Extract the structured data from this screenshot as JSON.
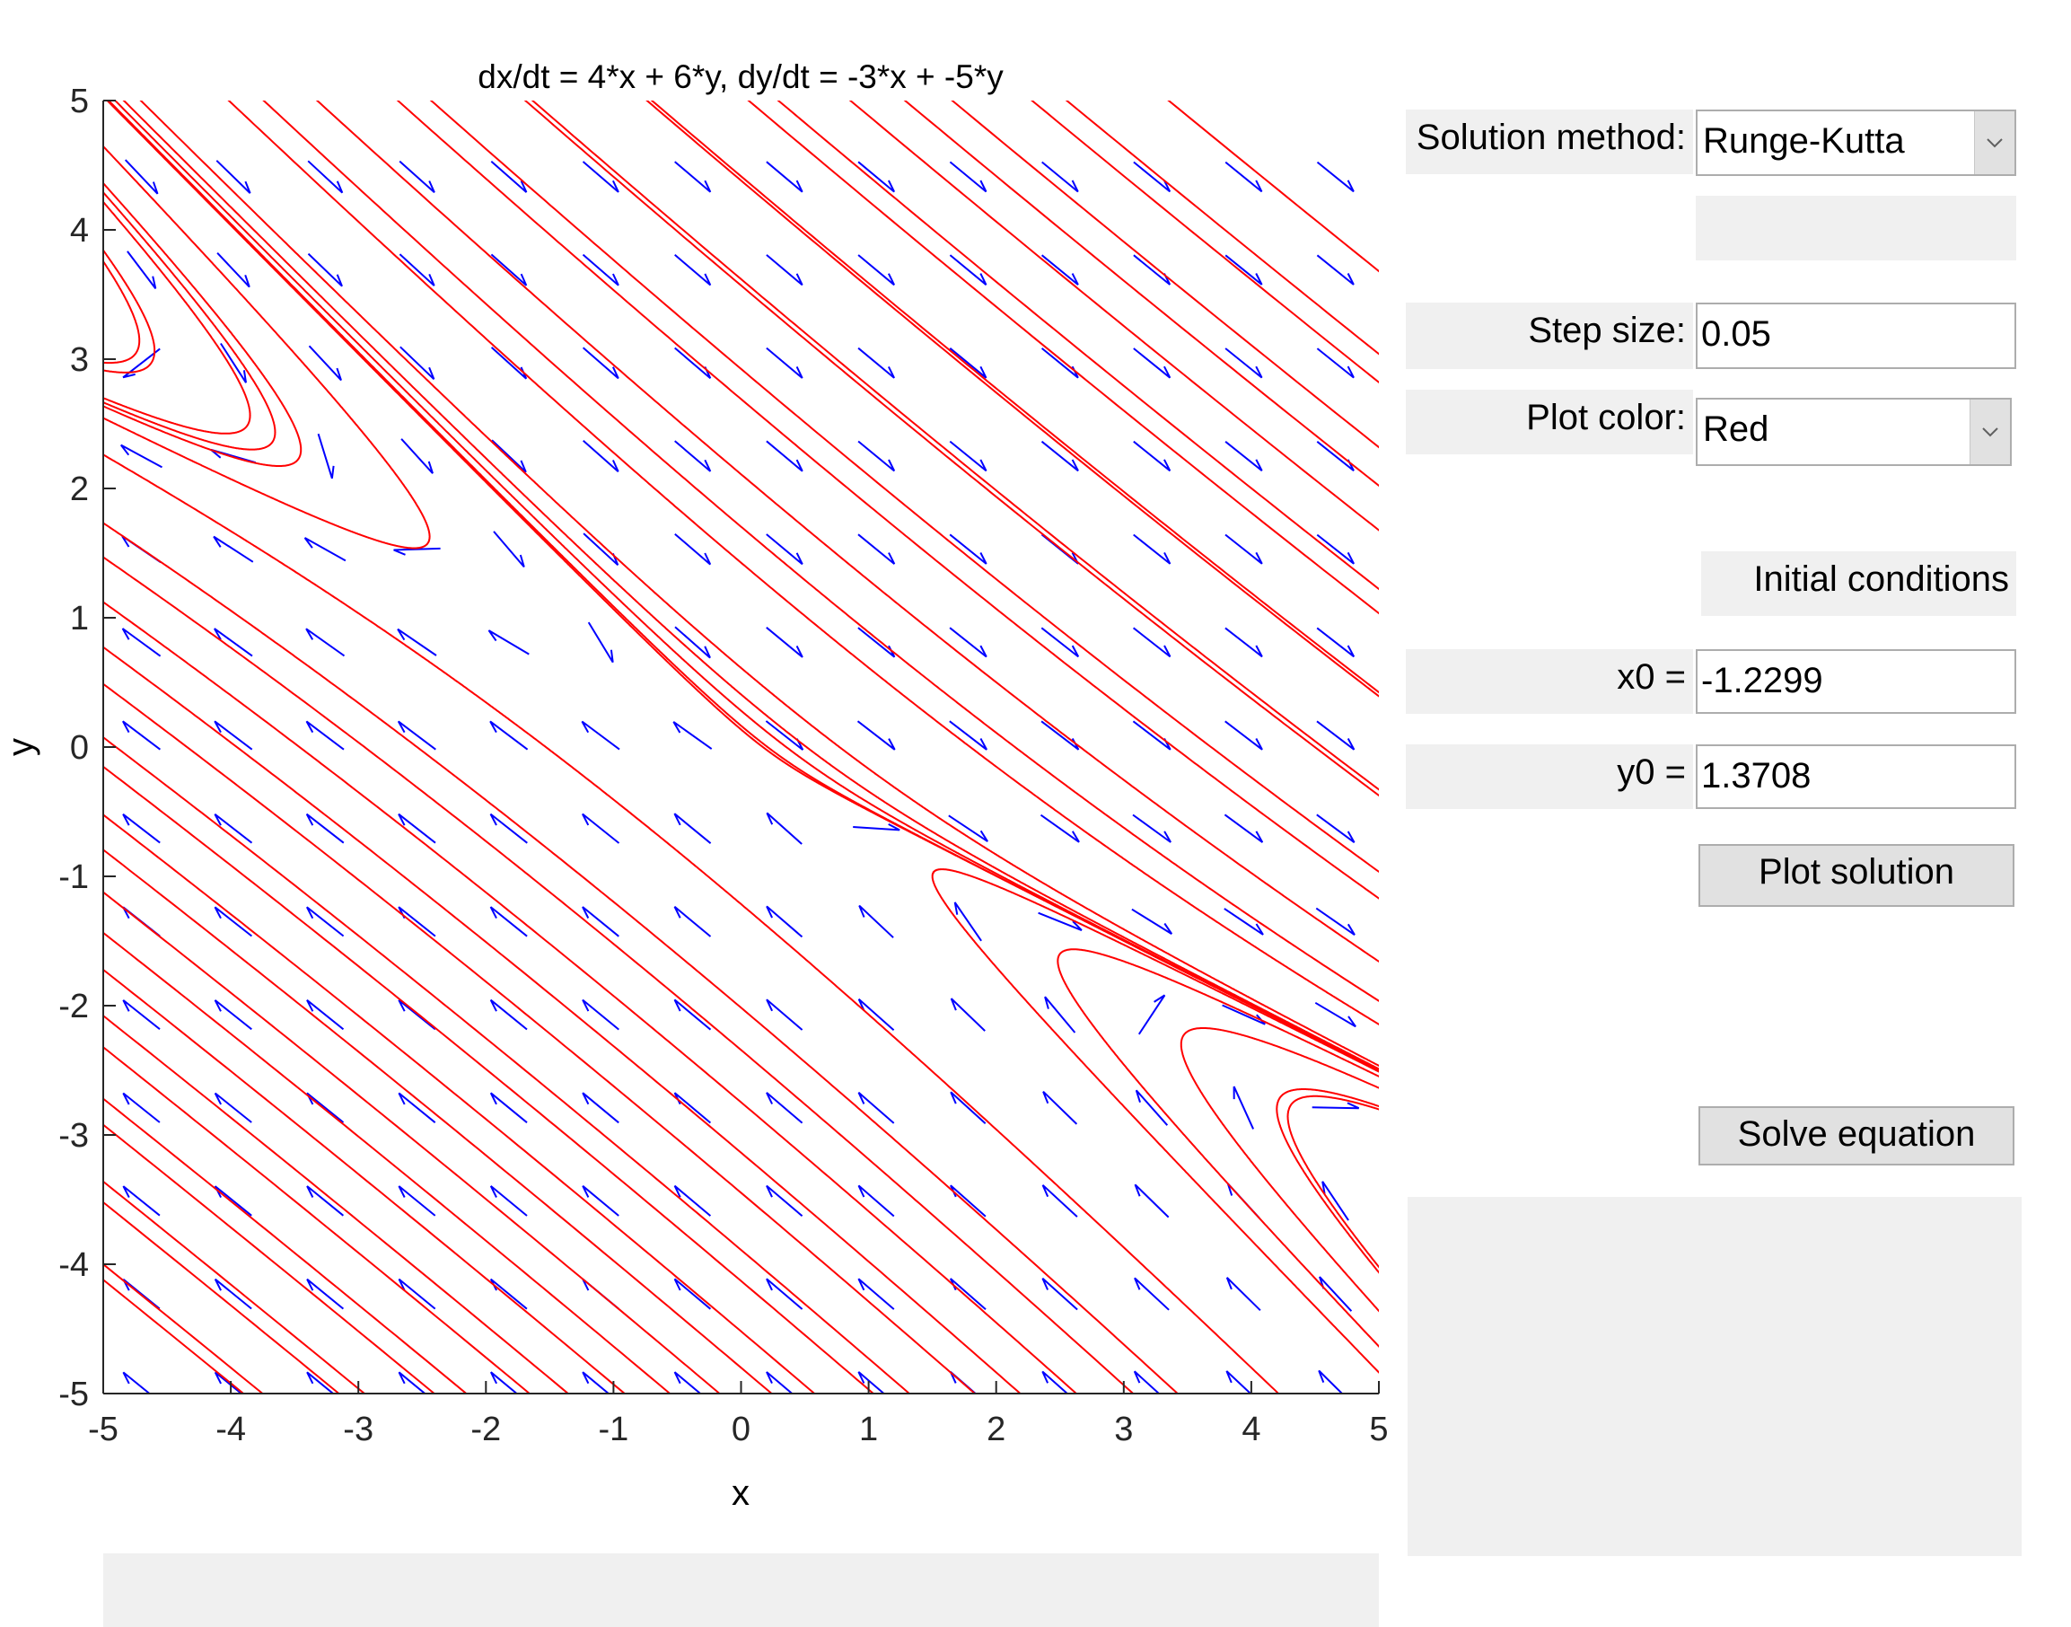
{
  "chart_data": {
    "type": "scatter",
    "subtype": "phase-portrait (direction field with solution curves)",
    "title": "dx/dt = 4*x + 6*y, dy/dt = -3*x + -5*y",
    "xlabel": "x",
    "ylabel": "y",
    "xlim": [
      -5,
      5
    ],
    "ylim": [
      -5,
      5
    ],
    "xticks": [
      -5,
      -4,
      -3,
      -2,
      -1,
      0,
      1,
      2,
      3,
      4,
      5
    ],
    "yticks": [
      -5,
      -4,
      -3,
      -2,
      -1,
      0,
      1,
      2,
      3,
      4,
      5
    ],
    "grid": false,
    "system": {
      "a": 4,
      "b": 6,
      "c": -3,
      "d": -5
    },
    "direction_field_color": "#0000ff",
    "solution_color": "#ff0000",
    "solution_initial_conditions": [
      [
        -4.5,
        4.8
      ],
      [
        -3.8,
        4.8
      ],
      [
        -3.1,
        4.8
      ],
      [
        -2.2,
        4.8
      ],
      [
        -1.4,
        4.8
      ],
      [
        -0.5,
        4.8
      ],
      [
        0.3,
        4.8
      ],
      [
        1.1,
        4.8
      ],
      [
        1.9,
        4.8
      ],
      [
        2.8,
        4.8
      ],
      [
        3.6,
        4.8
      ],
      [
        -4.9,
        4.1
      ],
      [
        -4.9,
        3.6
      ],
      [
        -4.9,
        2.9
      ],
      [
        4.9,
        2.9
      ],
      [
        4.9,
        2.1
      ],
      [
        4.9,
        1.3
      ],
      [
        4.9,
        0.5
      ],
      [
        4.9,
        -0.3
      ],
      [
        4.9,
        -1.1
      ],
      [
        4.9,
        -1.9
      ],
      [
        4.0,
        -4.8
      ],
      [
        3.2,
        -4.8
      ],
      [
        2.4,
        -4.8
      ],
      [
        1.6,
        -4.8
      ],
      [
        0.8,
        -4.8
      ],
      [
        0.0,
        -4.8
      ],
      [
        -0.8,
        -4.8
      ],
      [
        -1.6,
        -4.8
      ],
      [
        -2.4,
        -4.8
      ],
      [
        -3.2,
        -4.8
      ],
      [
        -4.0,
        -4.8
      ],
      [
        -4.9,
        1.4
      ],
      [
        -4.9,
        0.7
      ],
      [
        -4.9,
        0.0
      ],
      [
        -4.9,
        -0.6
      ],
      [
        -4.9,
        -1.2
      ],
      [
        -4.9,
        -1.8
      ],
      [
        -4.9,
        -2.4
      ],
      [
        -4.9,
        -3.0
      ],
      [
        -4.9,
        -3.6
      ],
      [
        -4.9,
        -4.2
      ],
      [
        -1.2,
        1.37
      ],
      [
        -0.9,
        1.2
      ],
      [
        -0.3,
        0.4
      ],
      [
        0.5,
        -0.2
      ],
      [
        -2.5,
        1.8
      ],
      [
        -3.5,
        2.2
      ],
      [
        1.5,
        -1.0
      ],
      [
        2.5,
        -1.6
      ],
      [
        3.5,
        -2.2
      ],
      [
        4.5,
        -2.7
      ],
      [
        4.2,
        -2.8
      ],
      [
        -4.3,
        2.4
      ]
    ]
  },
  "controls": {
    "solution_method": {
      "label": "Solution method:",
      "value": "Runge-Kutta"
    },
    "step_size": {
      "label": "Step size:",
      "value": "0.05"
    },
    "plot_color": {
      "label": "Plot color:",
      "value": "Red"
    },
    "initial_conditions": {
      "label": "Initial conditions"
    },
    "x0": {
      "label": "x0 =",
      "value": "-1.2299"
    },
    "y0": {
      "label": "y0 =",
      "value": "1.3708"
    },
    "plot_button": "Plot solution",
    "solve_button": "Solve equation"
  },
  "icons": {
    "dropdown": "chevron-down-icon"
  },
  "colors": {
    "panel": "#f0f0f0",
    "button": "#e1e1e1",
    "field_border": "#adadad"
  }
}
